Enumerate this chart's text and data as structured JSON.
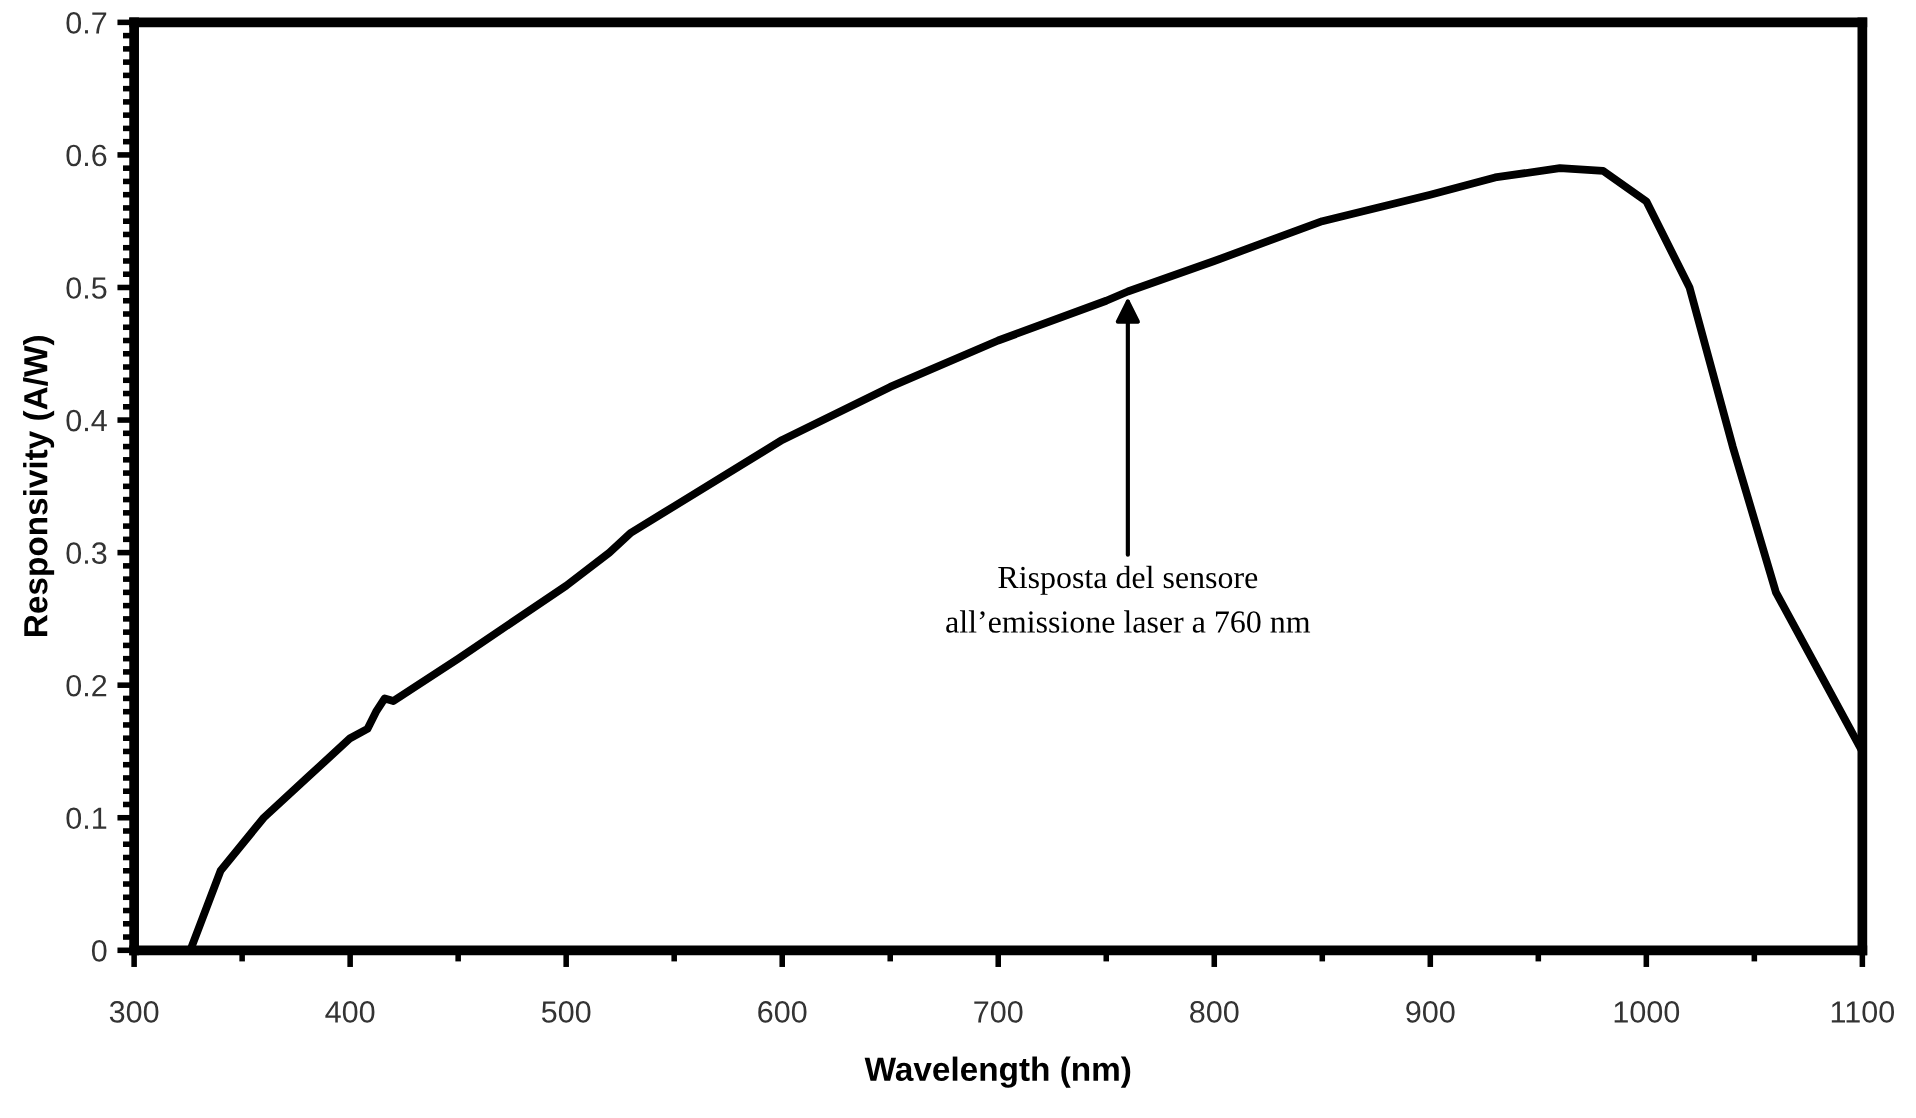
{
  "chart_data": {
    "type": "line",
    "xlabel": "Wavelength (nm)",
    "ylabel": "Responsivity (A/W)",
    "xlim": [
      300,
      1100
    ],
    "xticks": [
      300,
      400,
      500,
      600,
      700,
      800,
      900,
      1000,
      1100
    ],
    "ylim": [
      0,
      0.7
    ],
    "yticks": [
      0,
      0.1,
      0.2,
      0.3,
      0.4,
      0.5,
      0.6,
      0.7
    ],
    "grid": false,
    "marker": "none",
    "line_style": "solid",
    "series": [
      {
        "color": "#000000",
        "x": [
          326,
          340,
          360,
          380,
          400,
          408,
          412,
          416,
          420,
          450,
          500,
          520,
          530,
          550,
          600,
          650,
          700,
          750,
          760,
          800,
          850,
          900,
          930,
          960,
          980,
          1000,
          1020,
          1040,
          1060,
          1080,
          1100
        ],
        "values": [
          0,
          0.06,
          0.1,
          0.13,
          0.16,
          0.167,
          0.18,
          0.19,
          0.188,
          0.22,
          0.275,
          0.3,
          0.315,
          0.335,
          0.385,
          0.425,
          0.46,
          0.49,
          0.497,
          0.52,
          0.55,
          0.57,
          0.583,
          0.59,
          0.588,
          0.565,
          0.5,
          0.38,
          0.27,
          0.21,
          0.15
        ]
      }
    ],
    "annotations": [
      {
        "text": "Risposta del sensore\nall’emissione laser a 760 nm",
        "x": 760,
        "y": 0.497
      }
    ]
  }
}
